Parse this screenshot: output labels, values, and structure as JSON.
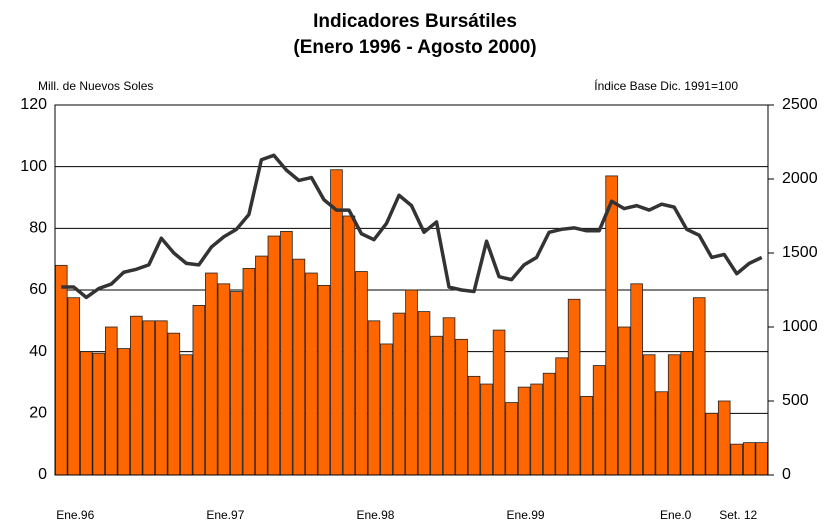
{
  "chart_data": {
    "type": "bar-line",
    "title": "Indicadores Bursátiles",
    "subtitle": "(Enero 1996 - Agosto 2000)",
    "y_label": "Mill. de Nuevos Soles",
    "y2_label": "Índice Base Dic. 1991=100",
    "categories": [
      "Ene.96",
      null,
      null,
      null,
      null,
      null,
      null,
      null,
      null,
      null,
      null,
      null,
      "Ene.97",
      null,
      null,
      null,
      null,
      null,
      null,
      null,
      null,
      null,
      null,
      null,
      "Ene.98",
      null,
      null,
      null,
      null,
      null,
      null,
      null,
      null,
      null,
      null,
      null,
      "Ene.99",
      null,
      null,
      null,
      null,
      null,
      null,
      null,
      null,
      null,
      null,
      null,
      "Ene.0",
      null,
      null,
      null,
      null,
      "Set. 12",
      null,
      null,
      null
    ],
    "series": [
      {
        "type": "bar",
        "color": "#ff6600",
        "values": [
          68,
          57.5,
          40,
          39.5,
          48,
          41,
          51.5,
          50,
          50,
          46,
          39,
          55,
          65.5,
          62,
          59.5,
          67,
          71,
          77.5,
          79,
          70,
          65.5,
          61.5,
          99,
          84,
          66,
          50,
          42.5,
          52.5,
          60,
          53,
          45,
          51,
          44,
          32,
          29.5,
          47,
          23.5,
          28.5,
          29.5,
          33,
          38,
          57,
          25.5,
          35.5,
          97,
          48,
          62,
          39,
          27,
          39,
          40,
          57.5,
          20,
          24,
          10,
          10.5,
          10.5
        ]
      },
      {
        "type": "line",
        "axis": "y2",
        "color": "#333333",
        "values": [
          1270,
          1270,
          1200,
          1260,
          1290,
          1370,
          1390,
          1420,
          1600,
          1500,
          1430,
          1420,
          1540,
          1610,
          1660,
          1760,
          2130,
          2160,
          2060,
          1990,
          2010,
          1860,
          1790,
          1790,
          1630,
          1590,
          1700,
          1890,
          1820,
          1640,
          1710,
          1270,
          1250,
          1240,
          1580,
          1340,
          1320,
          1420,
          1470,
          1640,
          1660,
          1670,
          1650,
          1650,
          1850,
          1800,
          1820,
          1790,
          1830,
          1810,
          1660,
          1620,
          1470,
          1490,
          1360,
          1430,
          1470
        ]
      }
    ],
    "ylim": [
      0,
      120
    ],
    "yticks": [
      0,
      20,
      40,
      60,
      80,
      100,
      120
    ],
    "y2lim": [
      0,
      2500
    ],
    "y2ticks": [
      0,
      500,
      1000,
      1500,
      2000,
      2500
    ],
    "grid": true
  }
}
